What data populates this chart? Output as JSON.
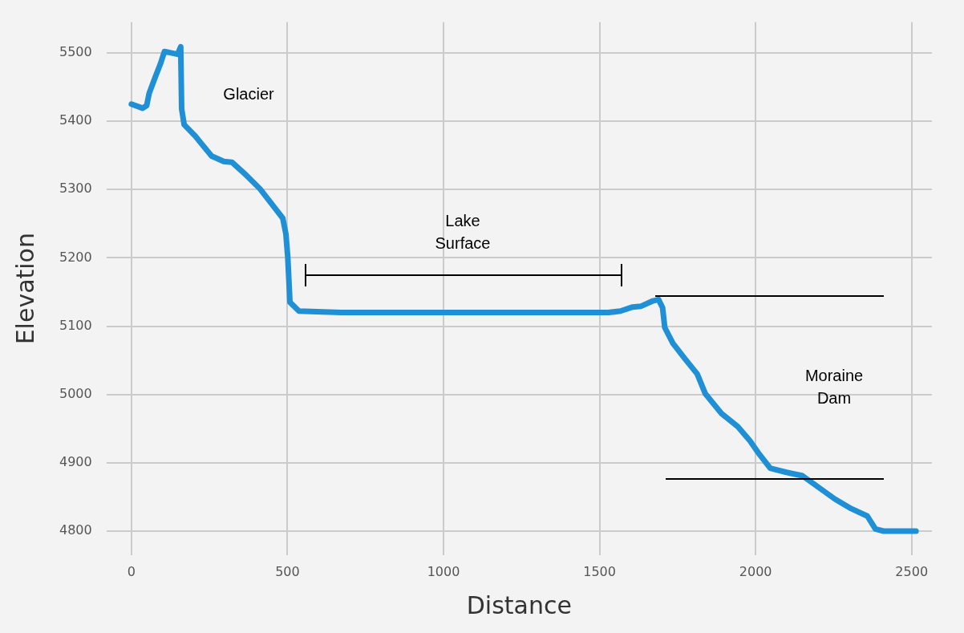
{
  "chart_data": {
    "type": "line",
    "xlabel": "Distance",
    "ylabel": "Elevation",
    "x": [
      0,
      36,
      49,
      57,
      75,
      93,
      106,
      127,
      148,
      158,
      161,
      169,
      205,
      257,
      296,
      322,
      361,
      412,
      451,
      485,
      495,
      501,
      508,
      537,
      672,
      1528,
      1567,
      1606,
      1632,
      1671,
      1689,
      1702,
      1709,
      1735,
      1774,
      1813,
      1839,
      1891,
      1943,
      1982,
      2008,
      2047,
      2099,
      2150,
      2202,
      2254,
      2306,
      2358,
      2384,
      2410,
      2514
    ],
    "series": [
      {
        "color": "#1f8fd6",
        "values": [
          5425,
          5419,
          5423,
          5441,
          5463,
          5484,
          5502,
          5500,
          5498,
          5509,
          5418,
          5395,
          5378,
          5349,
          5341,
          5340,
          5324,
          5301,
          5278,
          5258,
          5235,
          5201,
          5135,
          5122,
          5120,
          5120,
          5122,
          5128,
          5129,
          5137,
          5139,
          5127,
          5098,
          5075,
          5052,
          5030,
          5001,
          4972,
          4953,
          4932,
          4915,
          4892,
          4886,
          4881,
          4864,
          4847,
          4833,
          4822,
          4803,
          4800,
          4800
        ]
      }
    ],
    "xlim": [
      -80,
      2565
    ],
    "ylim": [
      4765,
      5545
    ],
    "xticks": [
      0,
      500,
      1000,
      1500,
      2000,
      2500
    ],
    "yticks": [
      4800,
      4900,
      5000,
      5100,
      5200,
      5300,
      5400,
      5500
    ],
    "annotations": [
      "Glacier",
      "Lake\nSurface",
      "Moraine\nDam"
    ],
    "grid": true,
    "legend": false,
    "marker": "none",
    "line_style": "solid"
  }
}
